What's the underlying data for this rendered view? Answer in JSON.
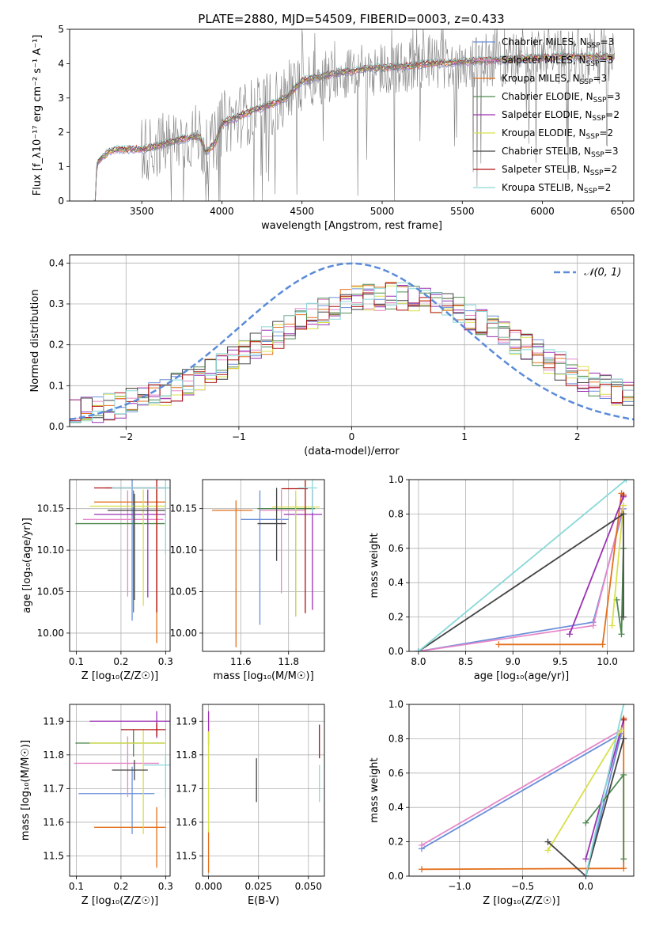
{
  "title": "PLATE=2880, MJD=54509, FIBERID=0003, z=0.433",
  "legend_entries": [
    {
      "label": "Chabrier MILES, N$_{SSP}$=3",
      "color": "#6a8fd9"
    },
    {
      "label": "Salpeter MILES, N$_{SSP}$=3",
      "color": "#e687c9"
    },
    {
      "label": "Kroupa MILES, N$_{SSP}$=3",
      "color": "#e3701c"
    },
    {
      "label": "Chabrier ELODIE, N$_{SSP}$=3",
      "color": "#4f8a4f"
    },
    {
      "label": "Salpeter ELODIE, N$_{SSP}$=2",
      "color": "#9c31b5"
    },
    {
      "label": "Kroupa ELODIE, N$_{SSP}$=2",
      "color": "#d8e04a"
    },
    {
      "label": "Chabrier STELIB, N$_{SSP}$=3",
      "color": "#444444"
    },
    {
      "label": "Salpeter STELIB, N$_{SSP}$=2",
      "color": "#b01010"
    },
    {
      "label": "Kroupa STELIB, N$_{SSP}$=2",
      "color": "#8ad8d8"
    }
  ],
  "chart_data": [
    {
      "id": "spectrum",
      "type": "line",
      "xlabel": "wavelength [Angstrom, rest frame]",
      "ylabel": "Flux [f_λ10⁻¹⁷ erg cm⁻² s⁻¹ A⁻¹]",
      "xlim": [
        3050,
        6570
      ],
      "ylim": [
        0,
        5
      ],
      "xticks": [
        3500,
        4000,
        4500,
        5000,
        5500,
        6000,
        6500
      ],
      "yticks": [
        0,
        1,
        2,
        3,
        4,
        5
      ],
      "data_color": "#7f7f7f",
      "model_anchors": [
        [
          3210,
          0
        ],
        [
          3220,
          1.1
        ],
        [
          3260,
          1.3
        ],
        [
          3300,
          1.45
        ],
        [
          3350,
          1.5
        ],
        [
          3450,
          1.5
        ],
        [
          3500,
          1.5
        ],
        [
          3600,
          1.6
        ],
        [
          3700,
          1.75
        ],
        [
          3800,
          1.85
        ],
        [
          3860,
          1.9
        ],
        [
          3900,
          1.4
        ],
        [
          3960,
          1.7
        ],
        [
          4000,
          2.25
        ],
        [
          4100,
          2.45
        ],
        [
          4200,
          2.65
        ],
        [
          4300,
          2.8
        ],
        [
          4400,
          3.0
        ],
        [
          4500,
          3.5
        ],
        [
          4700,
          3.7
        ],
        [
          4900,
          3.85
        ],
        [
          5100,
          3.9
        ],
        [
          5300,
          4.0
        ],
        [
          5500,
          4.05
        ],
        [
          5700,
          4.1
        ],
        [
          5900,
          4.15
        ],
        [
          6100,
          4.2
        ],
        [
          6300,
          4.2
        ],
        [
          6450,
          4.2
        ]
      ],
      "grid": false
    },
    {
      "id": "residuals",
      "type": "histogram",
      "xlabel": "(data-model)/error",
      "ylabel": "Normed distribution",
      "xlim": [
        -2.5,
        2.5
      ],
      "ylim": [
        0,
        0.42
      ],
      "xticks": [
        -2,
        -1,
        0,
        1,
        2
      ],
      "yticks": [
        0.0,
        0.1,
        0.2,
        0.3,
        0.4
      ],
      "reference_label": "𝒩(0, 1)",
      "reference_color": "#5b8bd9",
      "bins_start": -2.5,
      "bin_width": 0.1,
      "grid": true
    },
    {
      "id": "age_vs_Z",
      "type": "errorbar",
      "xlabel": "Z [log₁₀(Z/Z☉)]",
      "ylabel": "age  [log₁₀(age/yr)]",
      "xlim": [
        0.085,
        0.31
      ],
      "ylim": [
        9.978,
        10.185
      ],
      "xticks": [
        0.1,
        0.2,
        0.3
      ],
      "yticks": [
        10.0,
        10.05,
        10.1,
        10.15
      ],
      "points": [
        {
          "x": 0.225,
          "y": 10.175,
          "xerr": [
            0.06,
            0.08
          ],
          "yerr": [
            0.16,
            0.01
          ],
          "color": "#6a8fd9"
        },
        {
          "x": 0.215,
          "y": 10.137,
          "xerr": [
            0.1,
            0.08
          ],
          "yerr": [
            0.093,
            0.035
          ],
          "color": "#e687c9"
        },
        {
          "x": 0.28,
          "y": 10.158,
          "xerr": [
            0.14,
            0.02
          ],
          "yerr": [
            0.17,
            0.015
          ],
          "color": "#e3701c"
        },
        {
          "x": 0.228,
          "y": 10.132,
          "xerr": [
            0.13,
            0.07
          ],
          "yerr": [
            0.107,
            0.04
          ],
          "color": "#4f8a4f"
        },
        {
          "x": 0.26,
          "y": 10.143,
          "xerr": [
            0.12,
            0.04
          ],
          "yerr": [
            0.1,
            0.03
          ],
          "color": "#9c31b5"
        },
        {
          "x": 0.25,
          "y": 10.153,
          "xerr": [
            0.12,
            0.05
          ],
          "yerr": [
            0.12,
            0.02
          ],
          "color": "#d8e04a"
        },
        {
          "x": 0.23,
          "y": 10.148,
          "xerr": [
            0.06,
            0.07
          ],
          "yerr": [
            0.108,
            0.02
          ],
          "color": "#444444"
        },
        {
          "x": 0.28,
          "y": 10.175,
          "xerr": [
            0.14,
            0.02
          ],
          "yerr": [
            0.15,
            0.01
          ],
          "color": "#b01010"
        },
        {
          "x": 0.3,
          "y": 10.175,
          "xerr": [
            0.12,
            0.01
          ],
          "yerr": [
            0.08,
            0.01
          ],
          "color": "#8ad8d8"
        }
      ],
      "grid": true
    },
    {
      "id": "age_vs_mass",
      "type": "errorbar",
      "xlabel": "mass [log₁₀(M/M☉)]",
      "xlim": [
        11.44,
        11.95
      ],
      "ylim": [
        9.978,
        10.185
      ],
      "xticks": [
        11.6,
        11.8
      ],
      "yticks": [
        10.0,
        10.05,
        10.1,
        10.15
      ],
      "points": [
        {
          "x": 11.68,
          "y": 10.137,
          "xerr": [
            0.08,
            0.12
          ],
          "yerr": [
            0.127,
            0.035
          ],
          "color": "#6a8fd9"
        },
        {
          "x": 11.77,
          "y": 10.148,
          "xerr": [
            0.09,
            0.1
          ],
          "yerr": [
            0.1,
            0.025
          ],
          "color": "#e687c9"
        },
        {
          "x": 11.58,
          "y": 10.148,
          "xerr": [
            0.1,
            0.07
          ],
          "yerr": [
            0.165,
            0.012
          ],
          "color": "#e3701c"
        },
        {
          "x": 11.83,
          "y": 10.15,
          "xerr": [
            0.16,
            0.08
          ],
          "yerr": [
            0.13,
            0.01
          ],
          "color": "#4f8a4f"
        },
        {
          "x": 11.9,
          "y": 10.143,
          "xerr": [
            0.12,
            0.04
          ],
          "yerr": [
            0.115,
            0.03
          ],
          "color": "#9c31b5"
        },
        {
          "x": 11.83,
          "y": 10.152,
          "xerr": [
            0.1,
            0.1
          ],
          "yerr": [
            0.132,
            0.02
          ],
          "color": "#d8e04a"
        },
        {
          "x": 11.75,
          "y": 10.132,
          "xerr": [
            0.08,
            0.04
          ],
          "yerr": [
            0.045,
            0.043
          ],
          "color": "#444444"
        },
        {
          "x": 11.87,
          "y": 10.174,
          "xerr": [
            0.1,
            0.01
          ],
          "yerr": [
            0.15,
            0.01
          ],
          "color": "#b01010"
        },
        {
          "x": 11.9,
          "y": 10.175,
          "xerr": [
            0.06,
            0.02
          ],
          "yerr": [
            0.03,
            0.01
          ],
          "color": "#8ad8d8"
        }
      ],
      "grid": true
    },
    {
      "id": "weight_vs_age",
      "type": "line",
      "xlabel": "age  [log₁₀(age/yr)]",
      "ylabel": "mass weight",
      "xlim": [
        7.9,
        10.28
      ],
      "ylim": [
        0,
        1
      ],
      "xticks": [
        8.0,
        8.5,
        9.0,
        9.5,
        10.0
      ],
      "yticks": [
        0.0,
        0.2,
        0.4,
        0.6,
        0.8,
        1.0
      ],
      "series": [
        {
          "color": "#6a8fd9",
          "points": [
            [
              8.0,
              0.0
            ],
            [
              9.85,
              0.17
            ],
            [
              10.17,
              0.83
            ]
          ]
        },
        {
          "color": "#e687c9",
          "points": [
            [
              8.0,
              0.0
            ],
            [
              9.85,
              0.15
            ],
            [
              10.17,
              0.85
            ]
          ]
        },
        {
          "color": "#e3701c",
          "points": [
            [
              8.85,
              0.04
            ],
            [
              9.95,
              0.04
            ],
            [
              10.15,
              0.92
            ]
          ]
        },
        {
          "color": "#4f8a4f",
          "points": [
            [
              10.1,
              0.3
            ],
            [
              10.15,
              0.1
            ],
            [
              10.17,
              0.6
            ]
          ]
        },
        {
          "color": "#9c31b5",
          "points": [
            [
              9.6,
              0.1
            ],
            [
              10.17,
              0.9
            ]
          ]
        },
        {
          "color": "#d8e04a",
          "points": [
            [
              10.05,
              0.15
            ],
            [
              10.17,
              0.85
            ]
          ]
        },
        {
          "color": "#444444",
          "points": [
            [
              8.0,
              0.0
            ],
            [
              10.17,
              0.8
            ],
            [
              10.17,
              0.2
            ]
          ]
        },
        {
          "color": "#b01010",
          "points": [
            [
              10.17,
              0.91
            ]
          ]
        },
        {
          "color": "#8ad8d8",
          "points": [
            [
              8.0,
              0.0
            ],
            [
              10.2,
              1.0
            ]
          ]
        }
      ],
      "grid": true
    },
    {
      "id": "mass_vs_Z",
      "type": "errorbar",
      "xlabel": "Z [log₁₀(Z/Z☉)]",
      "ylabel": "mass [log₁₀(M/M☉)]",
      "xlim": [
        0.085,
        0.31
      ],
      "ylim": [
        11.44,
        11.95
      ],
      "xticks": [
        0.1,
        0.2,
        0.3
      ],
      "yticks": [
        11.5,
        11.6,
        11.7,
        11.8,
        11.9
      ],
      "points": [
        {
          "x": 0.225,
          "y": 11.685,
          "xerr": [
            0.12,
            0.05
          ],
          "yerr": [
            0.12,
            0.08
          ],
          "color": "#6a8fd9"
        },
        {
          "x": 0.215,
          "y": 11.775,
          "xerr": [
            0.12,
            0.07
          ],
          "yerr": [
            0.1,
            0.08
          ],
          "color": "#e687c9"
        },
        {
          "x": 0.28,
          "y": 11.585,
          "xerr": [
            0.14,
            0.02
          ],
          "yerr": [
            0.12,
            0.06
          ],
          "color": "#e3701c"
        },
        {
          "x": 0.228,
          "y": 11.835,
          "xerr": [
            0.13,
            0.07
          ],
          "yerr": [
            0.04,
            0.04
          ],
          "color": "#4f8a4f"
        },
        {
          "x": 0.28,
          "y": 11.9,
          "xerr": [
            0.15,
            0.03
          ],
          "yerr": [
            0.05,
            0.03
          ],
          "color": "#9c31b5"
        },
        {
          "x": 0.25,
          "y": 11.835,
          "xerr": [
            0.12,
            0.05
          ],
          "yerr": [
            0.27,
            0.04
          ],
          "color": "#d8e04a"
        },
        {
          "x": 0.23,
          "y": 11.755,
          "xerr": [
            0.05,
            0.03
          ],
          "yerr": [
            0.03,
            0.03
          ],
          "color": "#444444"
        },
        {
          "x": 0.28,
          "y": 11.875,
          "xerr": [
            0.08,
            0.02
          ],
          "yerr": [
            0.02,
            0.02
          ],
          "color": "#b01010"
        },
        {
          "x": 0.3,
          "y": 11.77,
          "xerr": [
            0.05,
            0.01
          ],
          "yerr": [
            0.1,
            0.03
          ],
          "color": "#8ad8d8"
        }
      ],
      "grid": true
    },
    {
      "id": "mass_vs_ebv",
      "type": "errorbar",
      "xlabel": "E(B-V)",
      "xlim": [
        -0.003,
        0.058
      ],
      "ylim": [
        11.44,
        11.95
      ],
      "xticks": [
        0.0,
        0.025,
        0.05
      ],
      "yticks": [
        11.5,
        11.6,
        11.7,
        11.8,
        11.9
      ],
      "points": [
        {
          "x": 0.0,
          "y": 11.5,
          "yerr": [
            0.05,
            0.08
          ],
          "color": "#e3701c"
        },
        {
          "x": 0.0,
          "y": 11.88,
          "yerr": [
            0.05,
            0.05
          ],
          "color": "#9c31b5"
        },
        {
          "x": 0.0,
          "y": 11.75,
          "yerr": [
            0.18,
            0.12
          ],
          "color": "#d8e04a"
        },
        {
          "x": 0.024,
          "y": 11.725,
          "yerr": [
            0.065,
            0.065
          ],
          "color": "#444444"
        },
        {
          "x": 0.0555,
          "y": 11.84,
          "yerr": [
            0.05,
            0.05
          ],
          "color": "#b01010"
        },
        {
          "x": 0.0555,
          "y": 11.72,
          "yerr": [
            0.06,
            0.05
          ],
          "color": "#8ad8d8"
        }
      ],
      "grid": true
    },
    {
      "id": "weight_vs_Z",
      "type": "line",
      "xlabel": "Z [log₁₀(Z/Z☉)]",
      "ylabel": "mass weight",
      "xlim": [
        -1.4,
        0.38
      ],
      "ylim": [
        0,
        1
      ],
      "xticks": [
        -1.0,
        -0.5,
        0.0
      ],
      "yticks": [
        0.0,
        0.2,
        0.4,
        0.6,
        0.8,
        1.0
      ],
      "series": [
        {
          "color": "#6a8fd9",
          "points": [
            [
              -1.3,
              0.16
            ],
            [
              0.28,
              0.83
            ],
            [
              0.0,
              0.0
            ]
          ]
        },
        {
          "color": "#e687c9",
          "points": [
            [
              -1.3,
              0.18
            ],
            [
              0.28,
              0.85
            ]
          ]
        },
        {
          "color": "#e3701c",
          "points": [
            [
              -1.3,
              0.04
            ],
            [
              0.3,
              0.045
            ],
            [
              0.3,
              0.92
            ]
          ]
        },
        {
          "color": "#4f8a4f",
          "points": [
            [
              0.0,
              0.31
            ],
            [
              0.3,
              0.59
            ],
            [
              0.3,
              0.1
            ]
          ]
        },
        {
          "color": "#9c31b5",
          "points": [
            [
              0.0,
              0.1
            ],
            [
              0.3,
              0.91
            ]
          ]
        },
        {
          "color": "#d8e04a",
          "points": [
            [
              -0.3,
              0.15
            ],
            [
              0.28,
              0.85
            ]
          ]
        },
        {
          "color": "#444444",
          "points": [
            [
              -0.3,
              0.2
            ],
            [
              0.0,
              0.0
            ],
            [
              0.3,
              0.8
            ]
          ]
        },
        {
          "color": "#b01010",
          "points": [
            [
              0.3,
              0.91
            ]
          ]
        },
        {
          "color": "#8ad8d8",
          "points": [
            [
              0.0,
              0.0
            ],
            [
              0.3,
              1.0
            ]
          ]
        }
      ],
      "grid": true
    }
  ]
}
